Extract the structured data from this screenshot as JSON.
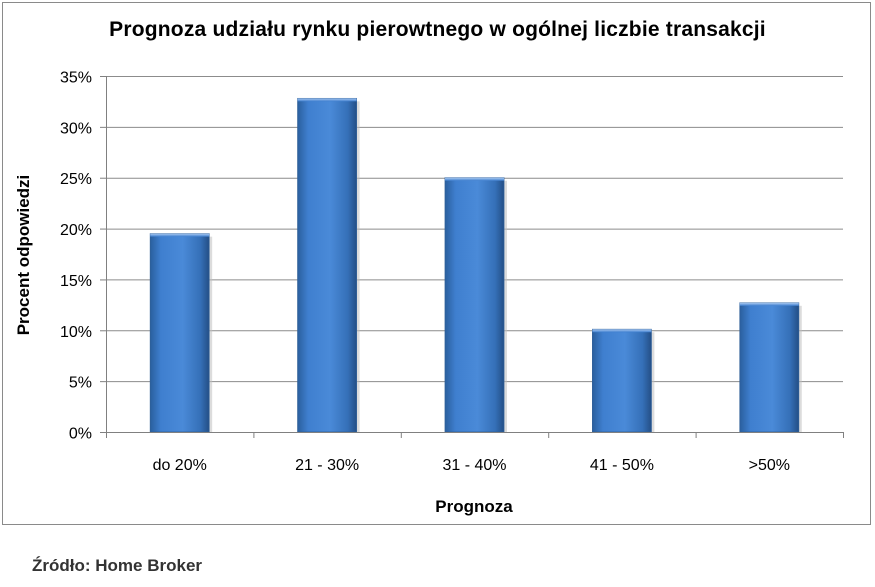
{
  "chart_data": {
    "type": "bar",
    "title": "Prognoza udziału rynku pierowtnego w ogólnej liczbie transakcji",
    "xlabel": "Prognoza",
    "ylabel": "Procent odpowiedzi",
    "categories": [
      "do 20%",
      "21 - 30%",
      "31 - 40%",
      "41 - 50%",
      ">50%"
    ],
    "values": [
      19.5,
      32.8,
      25.0,
      10.1,
      12.7
    ],
    "ylim": [
      0,
      35
    ],
    "yticks": [
      0,
      5,
      10,
      15,
      20,
      25,
      30,
      35
    ],
    "ytick_labels": [
      "0%",
      "5%",
      "10%",
      "15%",
      "20%",
      "25%",
      "30%",
      "35%"
    ],
    "grid": true,
    "bar_color": "#3f7fcf"
  },
  "source": "Źródło: Home Broker"
}
